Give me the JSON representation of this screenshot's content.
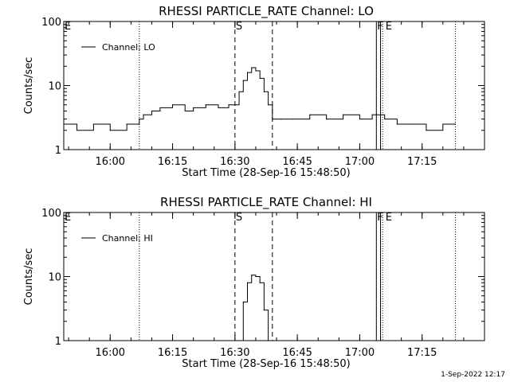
{
  "footer_timestamp": "1-Sep-2022 12:17",
  "chart_data": [
    {
      "type": "line",
      "title": "RHESSI PARTICLE_RATE Channel: LO",
      "xlabel": "Start Time (28-Sep-16 15:48:50)",
      "ylabel": "Counts/sec",
      "yscale": "log",
      "xlim": [
        "15:48:50",
        "17:30:00"
      ],
      "ylim": [
        1,
        100
      ],
      "x_ticks": [
        "16:00",
        "16:15",
        "16:30",
        "16:45",
        "17:00",
        "17:15"
      ],
      "y_ticks": [
        "1",
        "10",
        "100"
      ],
      "legend": "top-left",
      "series": [
        {
          "name": "Channel: LO",
          "x": [
            "15:48:50",
            "15:52:00",
            "15:56:00",
            "16:00:00",
            "16:04:00",
            "16:06:30",
            "16:07:00",
            "16:08:00",
            "16:10:00",
            "16:12:00",
            "16:15:00",
            "16:18:00",
            "16:20:00",
            "16:23:00",
            "16:26:00",
            "16:28:30",
            "16:30:00",
            "16:31:00",
            "16:32:00",
            "16:33:00",
            "16:34:00",
            "16:35:00",
            "16:36:00",
            "16:37:00",
            "16:38:00",
            "16:39:00",
            "16:40:00",
            "16:41:00",
            "16:44:00",
            "16:48:00",
            "16:52:00",
            "16:56:00",
            "17:00:00",
            "17:03:00",
            "17:06:00",
            "17:09:00",
            "17:12:00",
            "17:16:00",
            "17:20:00",
            "17:23:00"
          ],
          "values": [
            2.5,
            2.0,
            2.5,
            2.0,
            2.5,
            2.5,
            3.0,
            3.5,
            4.0,
            4.5,
            5.0,
            4.0,
            4.5,
            5.0,
            4.5,
            5.0,
            5.0,
            8.0,
            12.0,
            16.0,
            19.0,
            17.0,
            13.0,
            8.0,
            5.0,
            3.0,
            3.0,
            3.0,
            3.0,
            3.5,
            3.0,
            3.5,
            3.0,
            3.5,
            3.0,
            2.5,
            2.5,
            2.0,
            2.5,
            2.5
          ]
        }
      ],
      "annotations": [
        {
          "text": "E",
          "x": "15:48:50"
        },
        {
          "text": "S",
          "x": "16:30:00"
        },
        {
          "text": "F",
          "x": "17:04:00"
        },
        {
          "text": "E",
          "x": "17:06:00"
        }
      ],
      "vlines_dotted": [
        "16:07:00",
        "17:05:30",
        "17:23:00"
      ],
      "vlines_dashed": [
        "16:30:00",
        "16:39:00"
      ],
      "vlines_solid": [
        "17:04:00",
        "17:05:00"
      ]
    },
    {
      "type": "line",
      "title": "RHESSI PARTICLE_RATE Channel: HI",
      "xlabel": "Start Time (28-Sep-16 15:48:50)",
      "ylabel": "Counts/sec",
      "yscale": "log",
      "xlim": [
        "15:48:50",
        "17:30:00"
      ],
      "ylim": [
        1,
        100
      ],
      "x_ticks": [
        "16:00",
        "16:15",
        "16:30",
        "16:45",
        "17:00",
        "17:15"
      ],
      "y_ticks": [
        "1",
        "10",
        "100"
      ],
      "legend": "top-left",
      "series": [
        {
          "name": "Channel: HI",
          "x": [
            "16:31:00",
            "16:32:00",
            "16:33:00",
            "16:34:00",
            "16:35:00",
            "16:36:00",
            "16:37:00",
            "16:38:00"
          ],
          "values": [
            1.0,
            4.0,
            8.0,
            10.5,
            10.0,
            8.0,
            3.0,
            1.0
          ]
        }
      ],
      "annotations": [
        {
          "text": "E",
          "x": "15:48:50"
        },
        {
          "text": "S",
          "x": "16:30:00"
        },
        {
          "text": "F",
          "x": "17:04:00"
        },
        {
          "text": "E",
          "x": "17:06:00"
        }
      ],
      "vlines_dotted": [
        "16:07:00",
        "17:05:30",
        "17:23:00"
      ],
      "vlines_dashed": [
        "16:30:00",
        "16:39:00"
      ],
      "vlines_solid": [
        "17:04:00",
        "17:05:00"
      ]
    }
  ]
}
